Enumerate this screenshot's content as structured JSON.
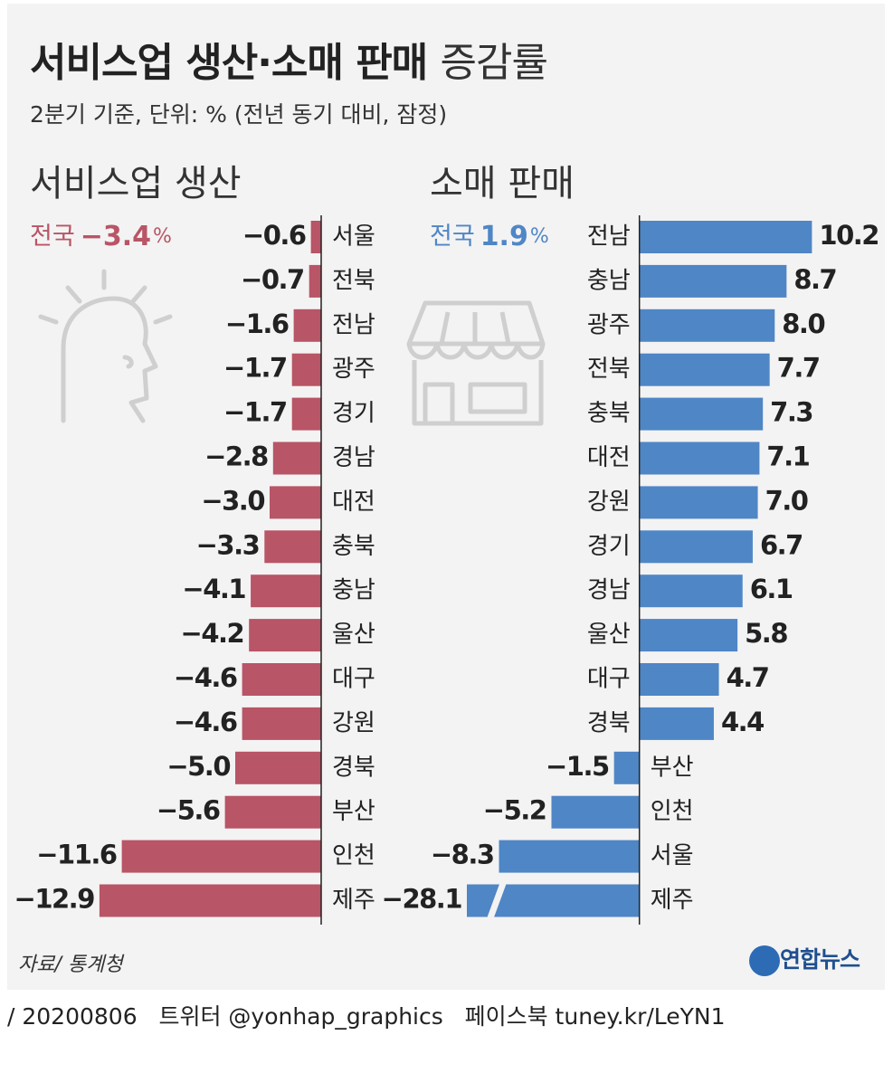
{
  "title": "서비스업 생산·소매 판매",
  "title_suffix": "증감률",
  "subtitle": "2분기 기준, 단위: % (전년 동기 대비, 잠정)",
  "chart_data": [
    {
      "type": "bar",
      "title": "서비스업 생산",
      "national": {
        "label": "전국",
        "value": -3.4,
        "value_label": "−3.4",
        "unit": "%"
      },
      "categories": [
        "서울",
        "전북",
        "전남",
        "광주",
        "경기",
        "경남",
        "대전",
        "충북",
        "충남",
        "울산",
        "대구",
        "강원",
        "경북",
        "부산",
        "인천",
        "제주"
      ],
      "values": [
        -0.6,
        -0.7,
        -1.6,
        -1.7,
        -1.7,
        -2.8,
        -3.0,
        -3.3,
        -4.1,
        -4.2,
        -4.6,
        -4.6,
        -5.0,
        -5.6,
        -11.6,
        -12.9
      ],
      "value_labels": [
        "−0.6",
        "−0.7",
        "−1.6",
        "−1.7",
        "−1.7",
        "−2.8",
        "−3.0",
        "−3.3",
        "−4.1",
        "−4.2",
        "−4.6",
        "−4.6",
        "−5.0",
        "−5.6",
        "−11.6",
        "−12.9"
      ],
      "color": "#b85566",
      "xlim": [
        -13,
        0
      ]
    },
    {
      "type": "bar",
      "title": "소매 판매",
      "national": {
        "label": "전국",
        "value": 1.9,
        "value_label": "1.9",
        "unit": "%"
      },
      "categories": [
        "전남",
        "충남",
        "광주",
        "전북",
        "충북",
        "대전",
        "강원",
        "경기",
        "경남",
        "울산",
        "대구",
        "경북",
        "부산",
        "인천",
        "서울",
        "제주"
      ],
      "values": [
        10.2,
        8.7,
        8.0,
        7.7,
        7.3,
        7.1,
        7.0,
        6.7,
        6.1,
        5.8,
        4.7,
        4.4,
        -1.5,
        -5.2,
        -8.3,
        -28.1
      ],
      "value_labels": [
        "10.2",
        "8.7",
        "8.0",
        "7.7",
        "7.3",
        "7.1",
        "7.0",
        "6.7",
        "6.1",
        "5.8",
        "4.7",
        "4.4",
        "−1.5",
        "−5.2",
        "−8.3",
        "−28.1"
      ],
      "color": "#4f86c6",
      "xlim": [
        -10.2,
        10.5
      ]
    }
  ],
  "source": "자료/ 통계청",
  "logo": "연합뉴스",
  "footer": "/ 20200806   트위터 @yonhap_graphics   페이스북 tuney.kr/LeYN1"
}
